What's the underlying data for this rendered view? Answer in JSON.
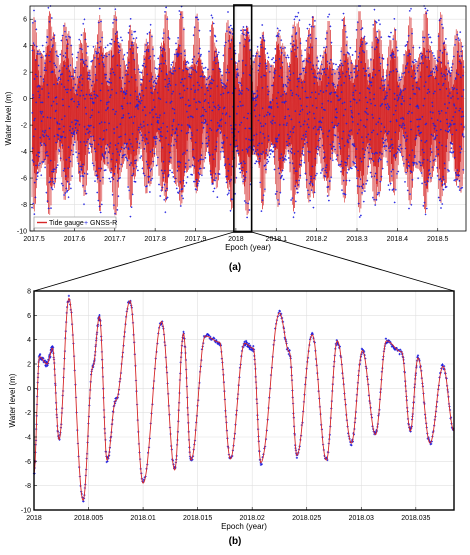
{
  "chart_data": [
    {
      "panel": "(a)",
      "type": "line",
      "xlabel": "Epoch (year)",
      "ylabel": "Water level (m)",
      "xlim": [
        2017.49,
        2018.57
      ],
      "ylim": [
        -10,
        7
      ],
      "xticks": [
        2017.5,
        2017.6,
        2017.7,
        2017.8,
        2017.9,
        2018,
        2018.1,
        2018.2,
        2018.3,
        2018.4,
        2018.5
      ],
      "xtick_labels": [
        "2017.5",
        "2017.6",
        "2017.7",
        "2017.8",
        "2017.9",
        "2018",
        "2018.1",
        "2018.2",
        "2018.3",
        "2018.4",
        "2018.5"
      ],
      "yticks": [
        -10,
        -8,
        -6,
        -4,
        -2,
        0,
        2,
        4,
        6
      ],
      "ytick_labels": [
        "-10",
        "-8",
        "-6",
        "-4",
        "-2",
        "0",
        "2",
        "4",
        "6"
      ],
      "grid": true,
      "legend": "bottom-left",
      "series": [
        {
          "name": "Tide gauge",
          "style": "line",
          "color": "#d62728",
          "description_range": [
            -8.5,
            6.5
          ]
        },
        {
          "name": "GNSS-R",
          "style": "marker",
          "color": "#1f1fe0",
          "description_range": [
            -9.5,
            7
          ]
        }
      ],
      "zoom_box": {
        "x": [
          2017.995,
          2018.039
        ],
        "y": [
          -10,
          7.5
        ]
      }
    },
    {
      "panel": "(b)",
      "type": "line",
      "xlabel": "Epoch (year)",
      "ylabel": "Water level (m)",
      "xlim": [
        2018,
        2018.0385
      ],
      "ylim": [
        -10,
        8
      ],
      "xticks": [
        2018,
        2018.005,
        2018.01,
        2018.015,
        2018.02,
        2018.025,
        2018.03,
        2018.035
      ],
      "xtick_labels": [
        "2018",
        "2018.005",
        "2018.01",
        "2018.015",
        "2018.02",
        "2018.025",
        "2018.03",
        "2018.035"
      ],
      "yticks": [
        -10,
        -8,
        -6,
        -4,
        -2,
        0,
        2,
        4,
        6,
        8
      ],
      "ytick_labels": [
        "-10",
        "-8",
        "-6",
        "-4",
        "-2",
        "0",
        "2",
        "4",
        "6",
        "8"
      ],
      "grid": true,
      "series": [
        {
          "name": "Tide gauge",
          "style": "line",
          "color": "#d62728"
        },
        {
          "name": "GNSS-R",
          "style": "marker",
          "color": "#1f1fe0"
        }
      ],
      "extrema": {
        "x": [
          2018.0,
          2018.0005,
          2018.0012,
          2018.0017,
          2018.0023,
          2018.0032,
          2018.0045,
          2018.0054,
          2018.006,
          2018.0067,
          2018.0075,
          2018.0088,
          2018.01,
          2018.0117,
          2018.0129,
          2018.0137,
          2018.0144,
          2018.0157,
          2018.017,
          2018.018,
          2018.0193,
          2018.0201,
          2018.0208,
          2018.0225,
          2018.0234,
          2018.0241,
          2018.0255,
          2018.0268,
          2018.0278,
          2018.0291,
          2018.0301,
          2018.0313,
          2018.0323,
          2018.0337,
          2018.0345,
          2018.0352,
          2018.0363,
          2018.0375,
          2018.0385
        ],
        "y": [
          -7,
          2.6,
          2.0,
          3.3,
          -4.2,
          7.4,
          -9.2,
          1.8,
          5.9,
          -5.9,
          -1.0,
          7.2,
          -7.8,
          5.5,
          -6.7,
          4.5,
          -5.9,
          4.3,
          3.8,
          -5.8,
          3.7,
          3.3,
          -6.1,
          6.2,
          3.0,
          -5.5,
          4.4,
          -5.9,
          3.9,
          -4.5,
          3.1,
          -3.8,
          3.9,
          3.0,
          -3.5,
          2.5,
          -4.5,
          1.8,
          -3.5
        ]
      }
    }
  ],
  "captions": {
    "a": "(a)",
    "b": "(b)"
  },
  "colors": {
    "tide": "#d62728",
    "gnss": "#1f1fe0",
    "grid": "#e0e0e0",
    "axis": "#000000"
  }
}
